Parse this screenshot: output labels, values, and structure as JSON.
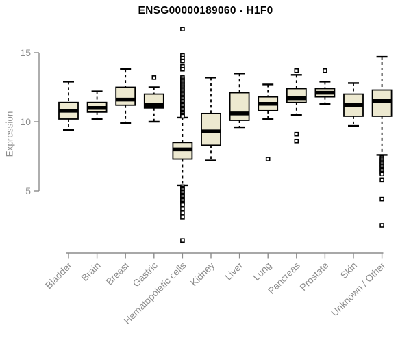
{
  "chart_data": {
    "type": "boxplot",
    "title": "ENSG00000189060 - H1F0",
    "ylabel": "Expression",
    "xlabel": "",
    "yticks": [
      15,
      10,
      5
    ],
    "ylim_visible": [
      0.5,
      17.1
    ],
    "grid": false,
    "legend": "none",
    "categories": [
      "Bladder",
      "Brain",
      "Breast",
      "Gastric",
      "Hematopoietic cells",
      "Kidney",
      "Liver",
      "Lung",
      "Pancreas",
      "Prostate",
      "Skin",
      "Unknown / Other"
    ],
    "boxes": [
      {
        "label": "Bladder",
        "low": 9.4,
        "q1": 10.2,
        "median": 10.8,
        "q3": 11.4,
        "high": 12.9,
        "outliers": []
      },
      {
        "label": "Brain",
        "low": 10.2,
        "q1": 10.7,
        "median": 11.0,
        "q3": 11.4,
        "high": 12.2,
        "outliers": []
      },
      {
        "label": "Breast",
        "low": 9.9,
        "q1": 11.2,
        "median": 11.6,
        "q3": 12.5,
        "high": 13.8,
        "outliers": []
      },
      {
        "label": "Gastric",
        "low": 10.0,
        "q1": 11.0,
        "median": 11.2,
        "q3": 12.0,
        "high": 12.5,
        "outliers": [
          13.2
        ]
      },
      {
        "label": "Hematopoietic cells",
        "low": 5.4,
        "q1": 7.3,
        "median": 8.0,
        "q3": 8.5,
        "high": 10.3,
        "outliers": [
          16.7,
          14.8,
          14.6,
          14.4,
          14.0,
          13.8,
          13.2,
          13.1,
          13.0,
          12.9,
          12.8,
          12.7,
          12.6,
          12.5,
          12.4,
          12.3,
          12.2,
          12.1,
          12.0,
          11.9,
          11.8,
          11.7,
          11.6,
          11.5,
          11.4,
          11.3,
          11.2,
          11.1,
          11.0,
          10.9,
          10.8,
          10.7,
          10.6,
          10.5,
          10.4,
          5.3,
          5.2,
          5.1,
          5.0,
          4.9,
          4.8,
          4.7,
          4.6,
          4.5,
          4.4,
          4.3,
          4.2,
          4.1,
          4.0,
          3.7,
          3.4,
          3.1,
          1.4
        ]
      },
      {
        "label": "Kidney",
        "low": 7.2,
        "q1": 8.3,
        "median": 9.3,
        "q3": 10.6,
        "high": 13.2,
        "outliers": []
      },
      {
        "label": "Liver",
        "low": 9.6,
        "q1": 10.1,
        "median": 10.6,
        "q3": 12.1,
        "high": 13.5,
        "outliers": []
      },
      {
        "label": "Lung",
        "low": 10.2,
        "q1": 10.8,
        "median": 11.3,
        "q3": 11.8,
        "high": 12.7,
        "outliers": [
          7.3
        ]
      },
      {
        "label": "Pancreas",
        "low": 10.5,
        "q1": 11.4,
        "median": 11.7,
        "q3": 12.4,
        "high": 13.4,
        "outliers": [
          13.7,
          9.1,
          8.6
        ]
      },
      {
        "label": "Prostate",
        "low": 11.3,
        "q1": 11.8,
        "median": 12.1,
        "q3": 12.4,
        "high": 12.9,
        "outliers": [
          13.7
        ]
      },
      {
        "label": "Skin",
        "low": 9.7,
        "q1": 10.4,
        "median": 11.2,
        "q3": 12.0,
        "high": 12.8,
        "outliers": []
      },
      {
        "label": "Unknown / Other",
        "low": 7.6,
        "q1": 10.4,
        "median": 11.5,
        "q3": 12.3,
        "high": 14.7,
        "outliers": [
          7.4,
          7.3,
          7.2,
          7.1,
          7.0,
          6.9,
          6.8,
          6.7,
          6.6,
          6.5,
          6.4,
          6.3,
          6.2,
          5.8,
          4.4,
          2.5
        ]
      }
    ],
    "colors": {
      "box_fill": "#EDE9D0",
      "box_stroke": "#000000",
      "median": "#000000",
      "axis": "#8C8C8C",
      "title_text": "#000000",
      "background": "#FFFFFF"
    }
  }
}
